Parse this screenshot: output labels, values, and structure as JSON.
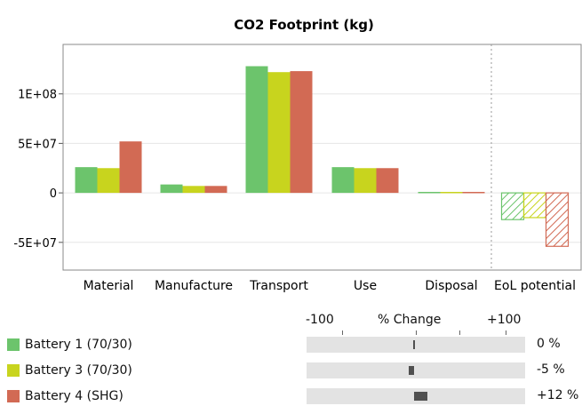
{
  "chart_data": {
    "type": "bar",
    "title": "CO2 Footprint (kg)",
    "categories": [
      "Material",
      "Manufacture",
      "Transport",
      "Use",
      "Disposal",
      "EoL potential"
    ],
    "y_ticks": [
      "1E+08",
      "5E+07",
      "0",
      "-5E+07"
    ],
    "ylim": [
      -78000000,
      150000000
    ],
    "grid": true,
    "legend": "bottom-left",
    "series": [
      {
        "name": "Battery 1 (70/30)",
        "color": "#6cc46c",
        "values": [
          26000000,
          8500000,
          128000000,
          26000000,
          1000000,
          -27000000
        ]
      },
      {
        "name": "Battery 3 (70/30)",
        "color": "#c8d41e",
        "values": [
          25000000,
          7000000,
          122000000,
          25000000,
          1000000,
          -25000000
        ]
      },
      {
        "name": "Battery 4 (SHG)",
        "color": "#d26a54",
        "values": [
          52000000,
          7000000,
          123000000,
          25000000,
          1000000,
          -54000000
        ]
      }
    ],
    "hatched_categories": [
      "EoL potential"
    ],
    "percent_change": {
      "header": "% Change",
      "scale_min_label": "-100",
      "scale_max_label": "+100",
      "scale": [
        -100,
        100
      ],
      "values": [
        0,
        -5,
        12
      ],
      "labels": [
        "0 %",
        "-5 %",
        "+12 %"
      ]
    }
  }
}
